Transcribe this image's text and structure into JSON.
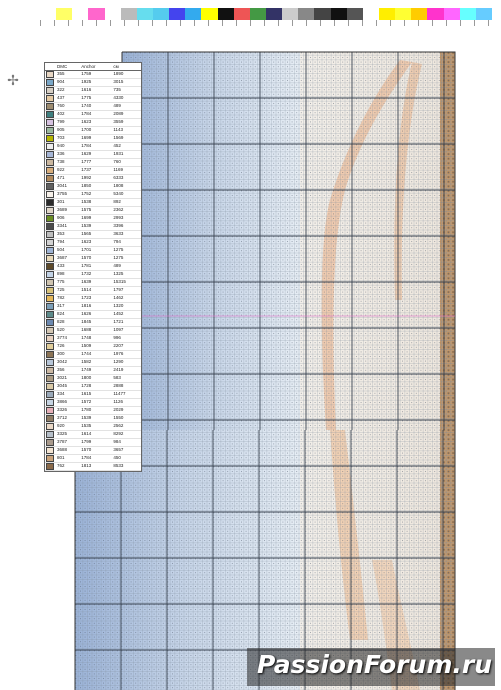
{
  "page": {
    "calibration_bar_colors": [
      "#ffffff",
      "#ffff66",
      "#ffffff",
      "#ff66cc",
      "#ffffff",
      "#bbbbbb",
      "#66ddee",
      "#55ccee",
      "#4444ee",
      "#33aaee",
      "#ffff00",
      "#111111",
      "#ee5555",
      "#449944",
      "#333366",
      "#cccccc",
      "#888888",
      "#444444",
      "#111111",
      "#555555",
      "#ffffff",
      "#ffee00",
      "#ffff33",
      "#ffcc00",
      "#ff33cc",
      "#ff66ff",
      "#66ffff",
      "#66ccff"
    ],
    "scan_mark_icon": "symbol-marker-icon",
    "scan_mark_glyph": "✢"
  },
  "legend": {
    "headers": {
      "dmc": "DMC",
      "anchor": "Anchor",
      "cm": "см"
    },
    "rows": [
      {
        "color": "#e8d7c4",
        "dmc": "355",
        "anchor": "1759",
        "cm": "1890"
      },
      {
        "color": "#7aa7c7",
        "dmc": "904",
        "anchor": "1925",
        "cm": "3015"
      },
      {
        "color": "#d7cfc4",
        "dmc": "322",
        "anchor": "1616",
        "cm": "735"
      },
      {
        "color": "#e4c9a2",
        "dmc": "437",
        "anchor": "1775",
        "cm": "4330"
      },
      {
        "color": "#9d8c70",
        "dmc": "760",
        "anchor": "1740",
        "cm": "489"
      },
      {
        "color": "#3f7f7f",
        "dmc": "402",
        "anchor": "1784",
        "cm": "2089"
      },
      {
        "color": "#d6c2e0",
        "dmc": "799",
        "anchor": "1623",
        "cm": "3559"
      },
      {
        "color": "#9ab89e",
        "dmc": "905",
        "anchor": "1700",
        "cm": "1143"
      },
      {
        "color": "#b6b600",
        "dmc": "703",
        "anchor": "1699",
        "cm": "1569"
      },
      {
        "color": "#eeeeee",
        "dmc": "940",
        "anchor": "1784",
        "cm": "452"
      },
      {
        "color": "#a6b6d6",
        "dmc": "336",
        "anchor": "1629",
        "cm": "1931"
      },
      {
        "color": "#cbb8a0",
        "dmc": "738",
        "anchor": "1777",
        "cm": "760"
      },
      {
        "color": "#d8ae7c",
        "dmc": "922",
        "anchor": "1737",
        "cm": "1169"
      },
      {
        "color": "#b0895c",
        "dmc": "471",
        "anchor": "1992",
        "cm": "6333"
      },
      {
        "color": "#606060",
        "dmc": "3041",
        "anchor": "1850",
        "cm": "1808"
      },
      {
        "color": "#f7f1ea",
        "dmc": "3755",
        "anchor": "1752",
        "cm": "5340"
      },
      {
        "color": "#2b2b2b",
        "dmc": "301",
        "anchor": "1538",
        "cm": "892"
      },
      {
        "color": "#e0d6c8",
        "dmc": "3689",
        "anchor": "1575",
        "cm": "2362"
      },
      {
        "color": "#6b8e23",
        "dmc": "906",
        "anchor": "1699",
        "cm": "2993"
      },
      {
        "color": "#4b4b4b",
        "dmc": "3341",
        "anchor": "1539",
        "cm": "3396"
      },
      {
        "color": "#bfbfbf",
        "dmc": "353",
        "anchor": "1565",
        "cm": "3633"
      },
      {
        "color": "#d2d2d2",
        "dmc": "794",
        "anchor": "1623",
        "cm": "794"
      },
      {
        "color": "#9fb4d4",
        "dmc": "504",
        "anchor": "1701",
        "cm": "1275"
      },
      {
        "color": "#e8d9b8",
        "dmc": "3687",
        "anchor": "1570",
        "cm": "1275"
      },
      {
        "color": "#5e4a2a",
        "dmc": "433",
        "anchor": "1781",
        "cm": "489"
      },
      {
        "color": "#c3d3e6",
        "dmc": "898",
        "anchor": "1732",
        "cm": "1325"
      },
      {
        "color": "#cfc4b0",
        "dmc": "775",
        "anchor": "1639",
        "cm": "15315"
      },
      {
        "color": "#d8c27a",
        "dmc": "725",
        "anchor": "1514",
        "cm": "1797"
      },
      {
        "color": "#e5b85a",
        "dmc": "782",
        "anchor": "1723",
        "cm": "1462"
      },
      {
        "color": "#7c9fb8",
        "dmc": "317",
        "anchor": "1816",
        "cm": "1320"
      },
      {
        "color": "#5d8a8a",
        "dmc": "824",
        "anchor": "1626",
        "cm": "1452"
      },
      {
        "color": "#6c89b0",
        "dmc": "828",
        "anchor": "1845",
        "cm": "1721"
      },
      {
        "color": "#d4c7b4",
        "dmc": "520",
        "anchor": "1688",
        "cm": "1097"
      },
      {
        "color": "#e7d1c0",
        "dmc": "3774",
        "anchor": "1748",
        "cm": "996"
      },
      {
        "color": "#e0cd9a",
        "dmc": "726",
        "anchor": "1509",
        "cm": "2207"
      },
      {
        "color": "#8b7355",
        "dmc": "300",
        "anchor": "1744",
        "cm": "1976"
      },
      {
        "color": "#b7c6d8",
        "dmc": "3042",
        "anchor": "1582",
        "cm": "1290"
      },
      {
        "color": "#ccb9a4",
        "dmc": "356",
        "anchor": "1749",
        "cm": "2419"
      },
      {
        "color": "#aa9a82",
        "dmc": "3021",
        "anchor": "1800",
        "cm": "583"
      },
      {
        "color": "#d9c9a6",
        "dmc": "3045",
        "anchor": "1728",
        "cm": "2888"
      },
      {
        "color": "#9aa9b9",
        "dmc": "334",
        "anchor": "1615",
        "cm": "11477"
      },
      {
        "color": "#c6d4e2",
        "dmc": "3866",
        "anchor": "1572",
        "cm": "1126"
      },
      {
        "color": "#e6b0b8",
        "dmc": "3326",
        "anchor": "1780",
        "cm": "2029"
      },
      {
        "color": "#8e7b63",
        "dmc": "3712",
        "anchor": "1539",
        "cm": "1550"
      },
      {
        "color": "#ead8c6",
        "dmc": "920",
        "anchor": "1535",
        "cm": "2562"
      },
      {
        "color": "#b6bfc9",
        "dmc": "3325",
        "anchor": "1614",
        "cm": "8292"
      },
      {
        "color": "#a99a8c",
        "dmc": "3787",
        "anchor": "1799",
        "cm": "984"
      },
      {
        "color": "#f3e4d2",
        "dmc": "3688",
        "anchor": "1570",
        "cm": "3657"
      },
      {
        "color": "#c9a27a",
        "dmc": "801",
        "anchor": "1784",
        "cm": "450"
      },
      {
        "color": "#8a6a4a",
        "dmc": "762",
        "anchor": "1813",
        "cm": "8533"
      }
    ]
  },
  "watermark": {
    "text": "PassionForum.ru"
  }
}
